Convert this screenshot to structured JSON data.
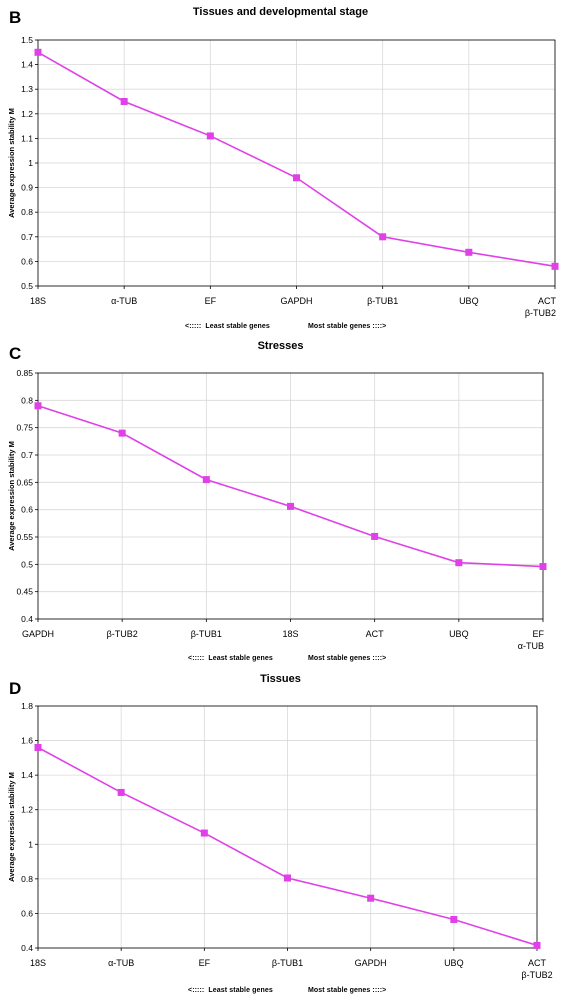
{
  "chart_data": [
    {
      "type": "line",
      "panel_label": "B",
      "title": "Tissues and developmental stage",
      "ylabel": "Average expression stability M",
      "xlabel_left": "<:::::  Least stable genes",
      "xlabel_right": "Most stable genes ::::>",
      "categories": [
        [
          "18S"
        ],
        [
          "α-TUB"
        ],
        [
          "EF"
        ],
        [
          "GAPDH"
        ],
        [
          "β-TUB1"
        ],
        [
          "UBQ"
        ],
        [
          "ACT",
          "β-TUB2"
        ]
      ],
      "values": [
        1.45,
        1.25,
        1.11,
        0.94,
        0.7,
        0.637,
        0.58
      ],
      "ylim": [
        0.5,
        1.5
      ],
      "yticks": [
        "0.5",
        "0.6",
        "0.7",
        "0.8",
        "0.9",
        "1",
        "1.1",
        "1.2",
        "1.3",
        "1.4",
        "1.5"
      ],
      "grid": true,
      "color": "#e040e8"
    },
    {
      "type": "line",
      "panel_label": "C",
      "title": "Stresses",
      "ylabel": "Average expression stability M",
      "xlabel_left": "<:::::  Least stable genes",
      "xlabel_right": "Most stable genes ::::>",
      "categories": [
        [
          "GAPDH"
        ],
        [
          "β-TUB2"
        ],
        [
          "β-TUB1"
        ],
        [
          "18S"
        ],
        [
          "ACT"
        ],
        [
          "UBQ"
        ],
        [
          "EF",
          "α-TUB"
        ]
      ],
      "values": [
        0.79,
        0.74,
        0.655,
        0.606,
        0.551,
        0.503,
        0.496
      ],
      "ylim": [
        0.4,
        0.85
      ],
      "yticks": [
        "0.4",
        "0.45",
        "0.5",
        "0.55",
        "0.6",
        "0.65",
        "0.7",
        "0.75",
        "0.8",
        "0.85"
      ],
      "grid": true,
      "color": "#e040e8"
    },
    {
      "type": "line",
      "panel_label": "D",
      "title": "Tissues",
      "ylabel": "Average expression stability M",
      "xlabel_left": "<:::::  Least stable genes",
      "xlabel_right": "Most stable genes ::::>",
      "categories": [
        [
          "18S"
        ],
        [
          "α-TUB"
        ],
        [
          "EF"
        ],
        [
          "β-TUB1"
        ],
        [
          "GAPDH"
        ],
        [
          "UBQ"
        ],
        [
          "ACT",
          "β-TUB2"
        ]
      ],
      "values": [
        1.56,
        1.3,
        1.065,
        0.805,
        0.688,
        0.565,
        0.415
      ],
      "ylim": [
        0.4,
        1.8
      ],
      "yticks": [
        "0.4",
        "0.6",
        "0.8",
        "1",
        "1.2",
        "1.4",
        "1.6",
        "1.8"
      ],
      "grid": true,
      "color": "#e040e8"
    }
  ]
}
